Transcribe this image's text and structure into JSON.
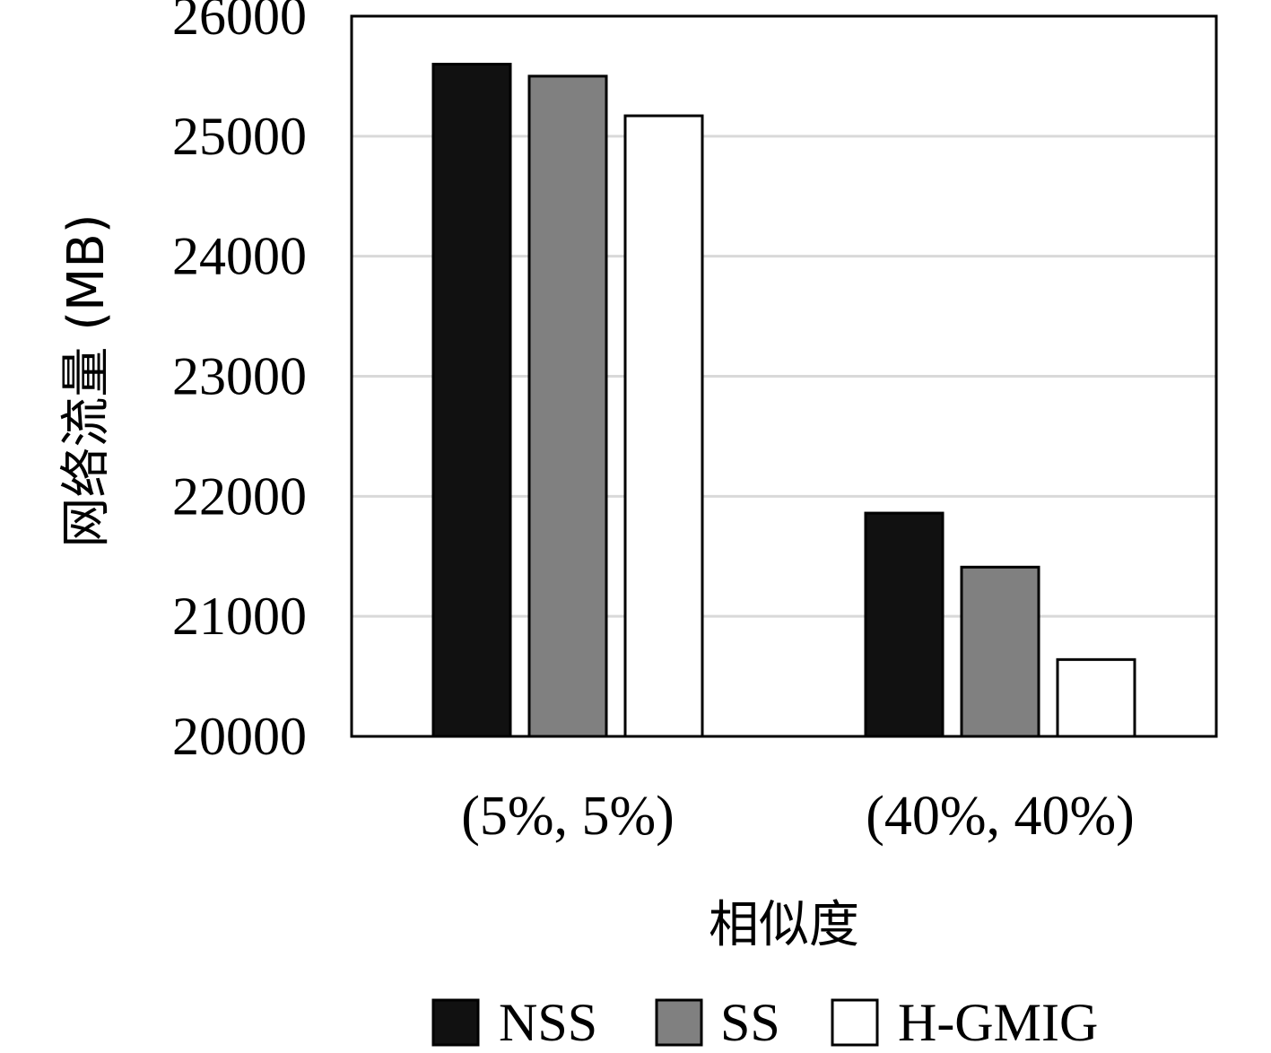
{
  "chart_data": {
    "type": "bar",
    "categories": [
      "(5%, 5%)",
      "(40%, 40%)"
    ],
    "series": [
      {
        "name": "NSS",
        "values": [
          25600,
          21860
        ],
        "color": "#111111"
      },
      {
        "name": "SS",
        "values": [
          25500,
          21410
        ],
        "color": "#808080"
      },
      {
        "name": "H-GMIG",
        "values": [
          25170,
          20640
        ],
        "color": "#ffffff"
      }
    ],
    "title": "",
    "xlabel": "相似度",
    "ylabel": "网络流量 (MB)",
    "ylim": [
      20000,
      26000
    ],
    "yticks": [
      20000,
      21000,
      22000,
      23000,
      24000,
      25000,
      26000
    ],
    "grid": true,
    "legend_position": "bottom"
  }
}
